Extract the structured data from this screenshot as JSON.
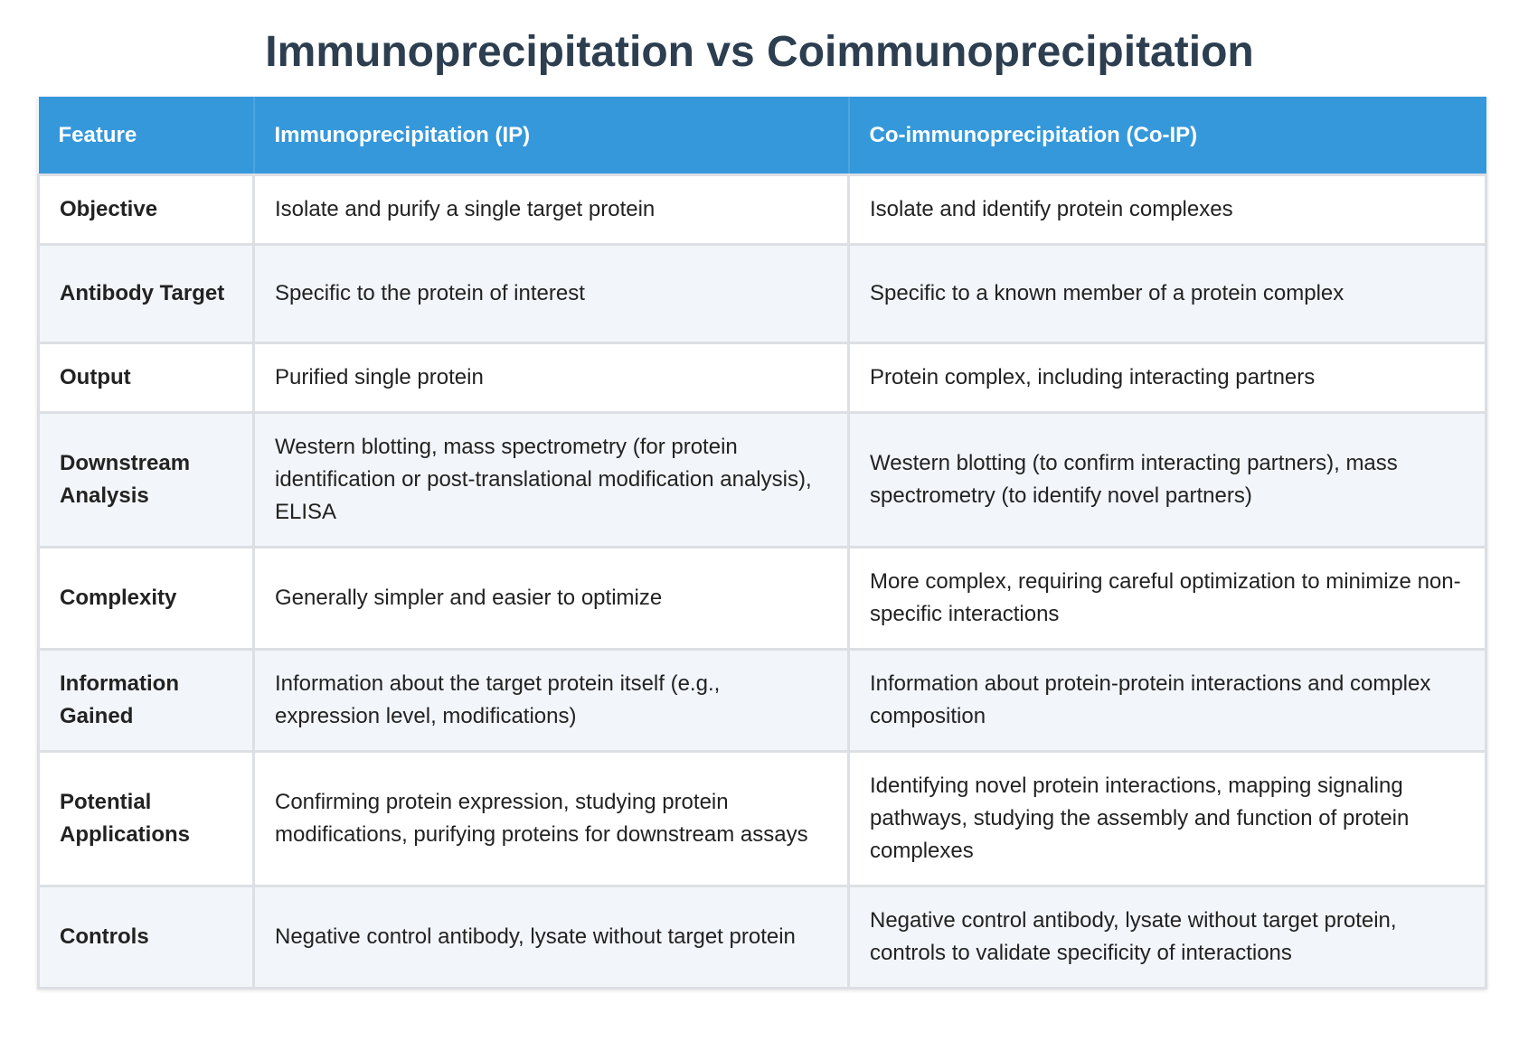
{
  "title": "Immunoprecipitation vs Coimmunoprecipitation",
  "colors": {
    "title": "#2c3e50",
    "header_bg": "#3598db",
    "header_text": "#ffffff",
    "row_alt": "#f2f5f9",
    "border": "#dcdfe4"
  },
  "table": {
    "headers": [
      "Feature",
      "Immunoprecipitation (IP)",
      "Co-immunoprecipitation (Co-IP)"
    ],
    "rows": [
      {
        "feature": "Objective",
        "ip": "Isolate and purify a single target protein",
        "coip": "Isolate and identify protein complexes"
      },
      {
        "feature": "Antibody Target",
        "ip": "Specific to the protein of interest",
        "coip": "Specific to a known member of a protein complex"
      },
      {
        "feature": "Output",
        "ip": "Purified single protein",
        "coip": "Protein complex, including interacting partners"
      },
      {
        "feature": "Downstream Analysis",
        "ip": "Western blotting, mass spectrometry (for protein identification or post-translational modification analysis), ELISA",
        "coip": "Western blotting (to confirm interacting partners), mass spectrometry (to identify novel partners)"
      },
      {
        "feature": "Complexity",
        "ip": "Generally simpler and easier to optimize",
        "coip": "More complex, requiring careful optimization to minimize non-specific interactions"
      },
      {
        "feature": "Information Gained",
        "ip": "Information about the target protein itself (e.g., expression level, modifications)",
        "coip": "Information about protein-protein interactions and complex composition"
      },
      {
        "feature": "Potential Applications",
        "ip": "Confirming protein expression, studying protein modifications, purifying proteins for downstream assays",
        "coip": "Identifying novel protein interactions, mapping signaling pathways, studying the assembly and function of protein complexes"
      },
      {
        "feature": "Controls",
        "ip": "Negative control antibody, lysate without target protein",
        "coip": "Negative control antibody, lysate without target protein, controls to validate specificity of interactions"
      }
    ]
  }
}
